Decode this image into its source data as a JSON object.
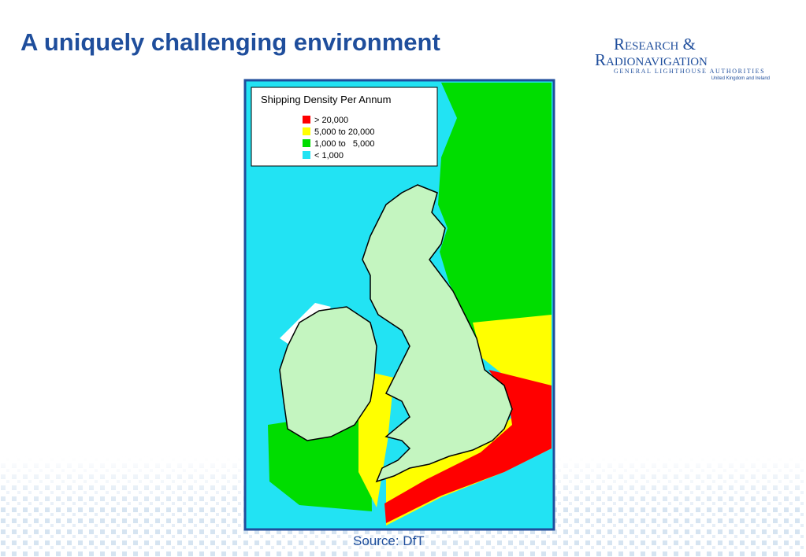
{
  "header": {
    "title": "A uniquely challenging environment"
  },
  "logo": {
    "line1": "Research &",
    "line2": "Radionavigation",
    "line3": "General Lighthouse Authorities",
    "line4": "United Kingdom and Ireland"
  },
  "map": {
    "legend": {
      "title": "Shipping Density Per Annum",
      "items": [
        {
          "label": "> 20,000",
          "color": "#ff0000"
        },
        {
          "label": "5,000 to 20,000",
          "color": "#ffff00"
        },
        {
          "label": "1,000 to   5,000",
          "color": "#00dd00"
        },
        {
          "label": "< 1,000",
          "color": "#22e3f3"
        }
      ]
    }
  },
  "source": "Source: DfT"
}
